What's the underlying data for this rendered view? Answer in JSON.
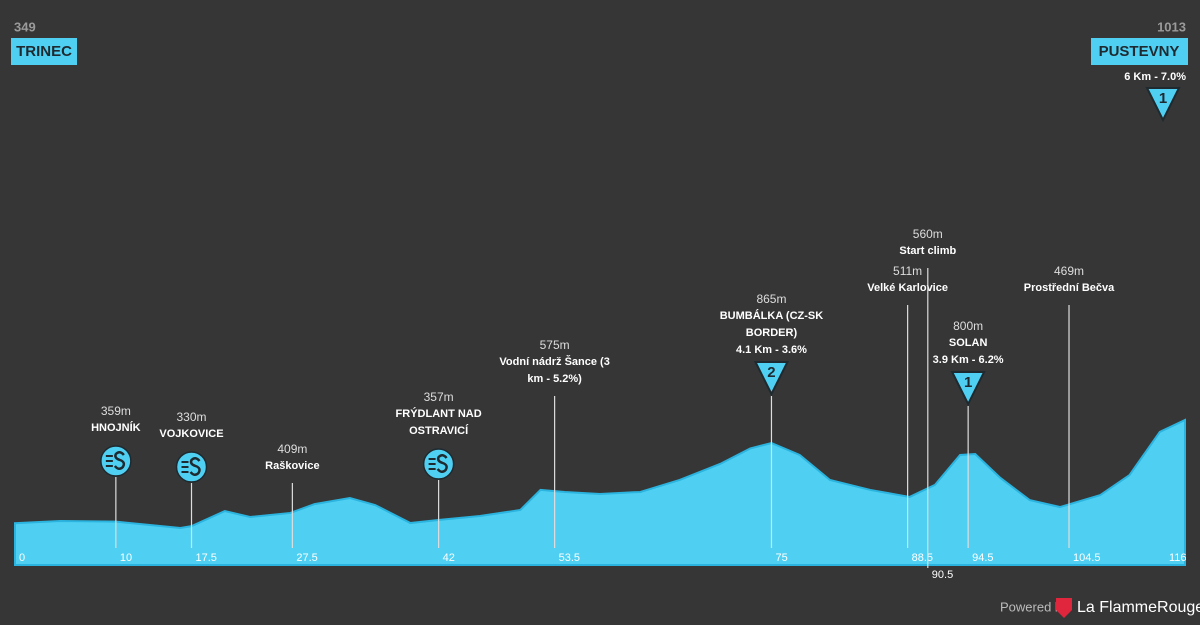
{
  "xlim": [
    0,
    116
  ],
  "ylim": [
    80,
    1013
  ],
  "profile": {
    "km": [
      0,
      4.5,
      10,
      16.4,
      17.5,
      20.8,
      23.3,
      27.3,
      29.7,
      33.2,
      35.7,
      39.2,
      42.1,
      46.1,
      50.1,
      52.1,
      54.5,
      58,
      62,
      65.9,
      69.9,
      72.9,
      75,
      77.8,
      80.8,
      84.8,
      88.7,
      91.2,
      93.7,
      95.2,
      97.7,
      100.6,
      103.6,
      107.6,
      110.5,
      113.5,
      116
    ],
    "elevation": [
      349,
      363,
      359,
      318,
      330,
      427,
      389,
      415,
      472,
      511,
      466,
      350,
      370,
      395,
      434,
      563,
      550,
      537,
      550,
      627,
      730,
      830,
      865,
      788,
      627,
      563,
      518,
      595,
      788,
      794,
      640,
      498,
      453,
      530,
      659,
      936,
      1013
    ]
  },
  "start": {
    "km": 0,
    "elevation": 349,
    "name": "TRINEC"
  },
  "finish": {
    "km": 116,
    "elevation": 1013,
    "name": "PUSTEVNY",
    "climb": "6 Km - 7.0%",
    "category": "1"
  },
  "waypoints": [
    {
      "km": 10,
      "elevation_label": "359m",
      "name": [
        "HNOJNÍK"
      ],
      "icon": "sprint"
    },
    {
      "km": 17.5,
      "elevation_label": "330m",
      "name": [
        "VOJKOVICE"
      ],
      "icon": "sprint"
    },
    {
      "km": 27.5,
      "elevation_label": "409m",
      "name": [
        "Raškovice"
      ]
    },
    {
      "km": 42,
      "elevation_label": "357m",
      "name": [
        "FRÝDLANT NAD",
        "OSTRAVICÍ"
      ],
      "icon": "sprint"
    },
    {
      "km": 53.5,
      "elevation_label": "575m",
      "name": [
        "Vodní nádrž Šance (3",
        "km - 5.2%)"
      ]
    },
    {
      "km": 75,
      "elevation_label": "865m",
      "name": [
        "BUMBÁLKA (CZ-SK",
        "BORDER)"
      ],
      "climb": "4.1 Km - 3.6%",
      "category": "2"
    },
    {
      "km": 88.5,
      "elevation_label": "511m",
      "name": [
        "Velké Karlovice"
      ]
    },
    {
      "km": 90.5,
      "elevation_label": "560m",
      "name": [
        "Start climb"
      ]
    },
    {
      "km": 94.5,
      "elevation_label": "800m",
      "name": [
        "SOLAN"
      ],
      "climb": "3.9 Km - 6.2%",
      "category": "1"
    },
    {
      "km": 104.5,
      "elevation_label": "469m",
      "name": [
        "Prostřední Bečva"
      ]
    }
  ],
  "footer": {
    "powered_by": "Powered by",
    "brand": "La FlammeRouge"
  }
}
